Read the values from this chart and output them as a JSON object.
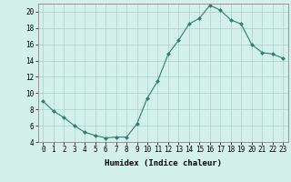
{
  "x": [
    0,
    1,
    2,
    3,
    4,
    5,
    6,
    7,
    8,
    9,
    10,
    11,
    12,
    13,
    14,
    15,
    16,
    17,
    18,
    19,
    20,
    21,
    22,
    23
  ],
  "y": [
    9.0,
    7.8,
    7.0,
    6.0,
    5.2,
    4.8,
    4.5,
    4.6,
    4.6,
    6.2,
    9.4,
    11.5,
    14.8,
    16.5,
    18.5,
    19.2,
    20.8,
    20.2,
    19.0,
    18.5,
    16.0,
    15.0,
    14.8,
    14.3
  ],
  "line_color": "#2e7d6e",
  "marker": "D",
  "marker_size": 2.0,
  "bg_color": "#d4f0eb",
  "grid_color": "#aacfca",
  "xlabel": "Humidex (Indice chaleur)",
  "xlim": [
    -0.5,
    23.5
  ],
  "ylim": [
    4,
    21
  ],
  "yticks": [
    4,
    6,
    8,
    10,
    12,
    14,
    16,
    18,
    20
  ],
  "xtick_labels": [
    "0",
    "1",
    "2",
    "3",
    "4",
    "5",
    "6",
    "7",
    "8",
    "9",
    "10",
    "11",
    "12",
    "13",
    "14",
    "15",
    "16",
    "17",
    "18",
    "19",
    "20",
    "21",
    "22",
    "23"
  ],
  "label_fontsize": 6.5,
  "tick_fontsize": 5.5
}
